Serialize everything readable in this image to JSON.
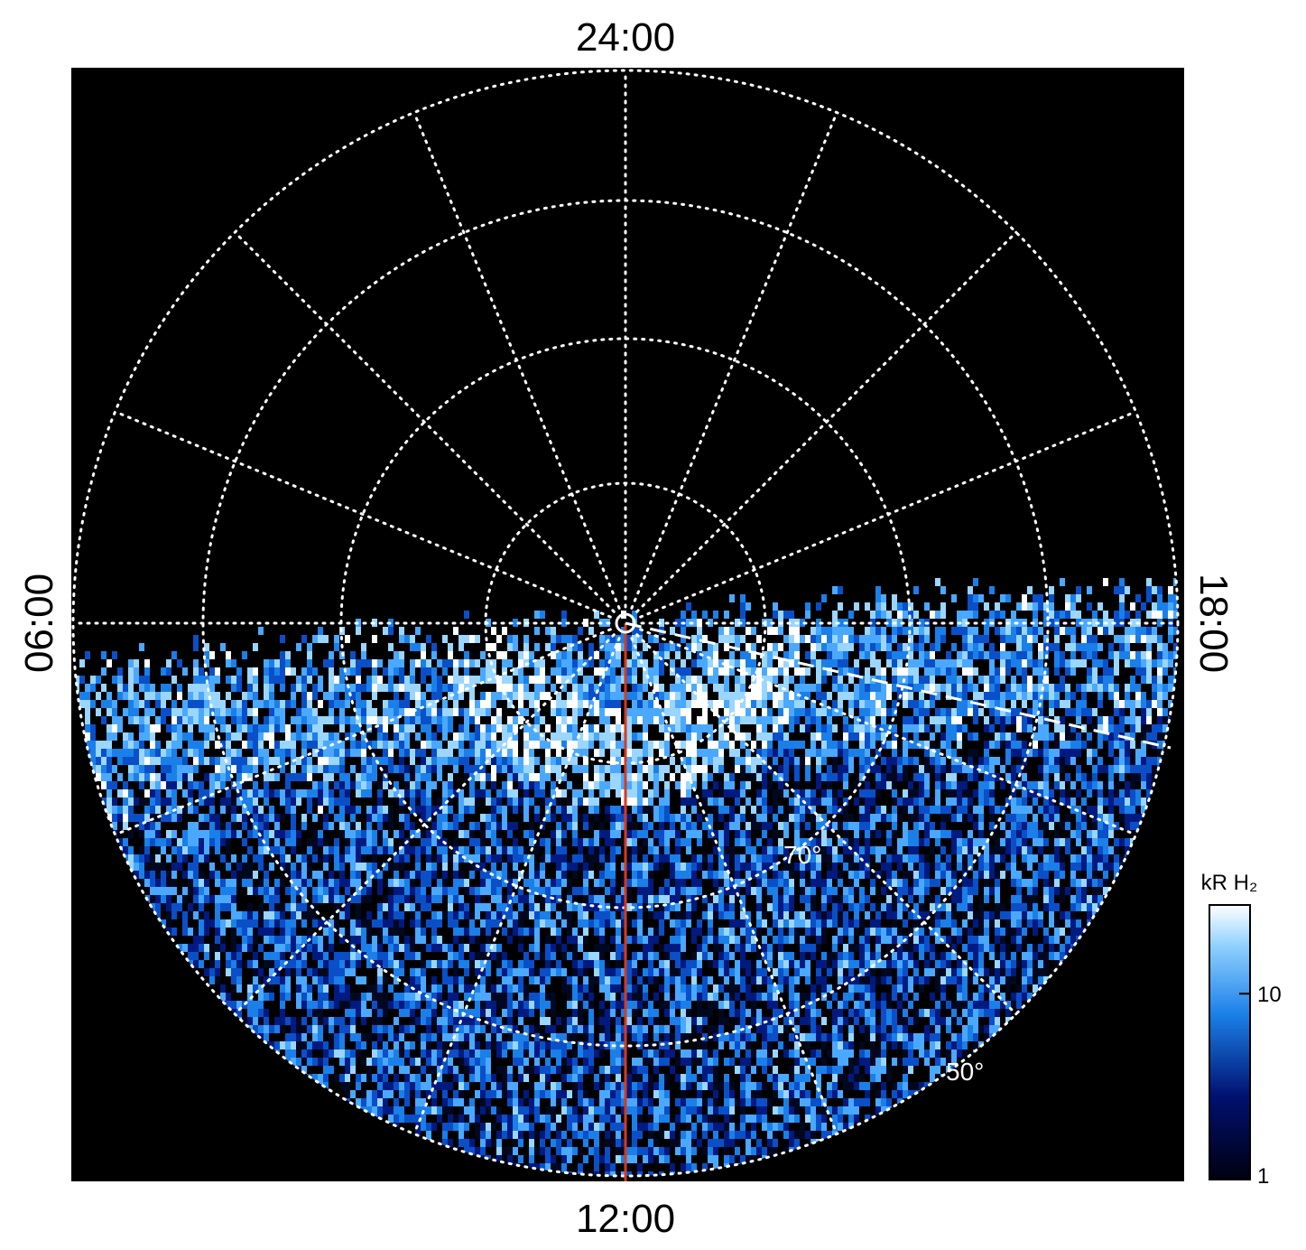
{
  "local_time_labels": {
    "top": "24:00",
    "left": "06:00",
    "bottom": "12:00",
    "right": "18:00"
  },
  "latitude_labels": [
    "70°",
    "50°"
  ],
  "colorbar": {
    "label": "kR H₂",
    "scale": "log",
    "lim": [
      1,
      30
    ],
    "ticks": [
      1,
      10
    ]
  }
}
